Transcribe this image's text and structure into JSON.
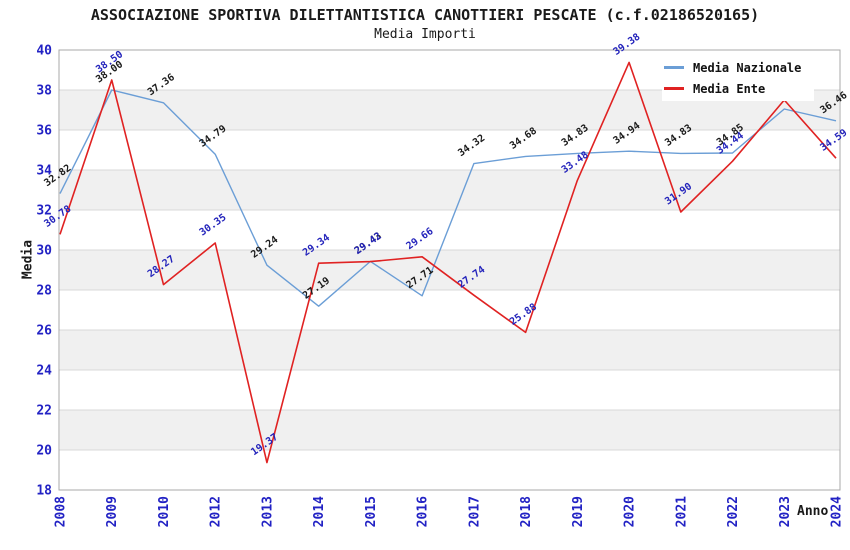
{
  "chart_data": {
    "type": "line",
    "title": "ASSOCIAZIONE SPORTIVA DILETTANTISTICA CANOTTIERI PESCATE (c.f.02186520165)",
    "subtitle": "Media Importi",
    "xlabel": "Anno",
    "ylabel": "Media",
    "ylim": [
      18,
      40
    ],
    "ytick_step": 2,
    "grid": "alternating-horizontal-bands",
    "legend_position": "top-right",
    "categories": [
      "2008",
      "2009",
      "2010",
      "2012",
      "2013",
      "2014",
      "2015",
      "2016",
      "2017",
      "2018",
      "2019",
      "2020",
      "2021",
      "2022",
      "2023",
      "2024"
    ],
    "series": [
      {
        "name": "Media Nazionale",
        "color": "#6b9ed6",
        "label_color": "#1a1a1a",
        "values": [
          32.82,
          38.0,
          37.36,
          34.79,
          29.24,
          27.19,
          29.43,
          27.71,
          34.32,
          34.68,
          34.83,
          34.94,
          34.83,
          34.85,
          37.05,
          36.46
        ],
        "labels": [
          "32.82",
          "38.00",
          "37.36",
          "34.79",
          "29.24",
          "27.19",
          "29.43",
          "27.71",
          "34.32",
          "34.68",
          "34.83",
          "34.94",
          "34.83",
          "34.85",
          "",
          "36.46"
        ]
      },
      {
        "name": "Media Ente",
        "color": "#e02222",
        "label_color": "#2323bb",
        "values": [
          30.78,
          38.5,
          28.27,
          30.35,
          19.37,
          29.34,
          29.42,
          29.66,
          27.74,
          25.88,
          33.48,
          39.38,
          31.9,
          34.44,
          37.5,
          34.59
        ],
        "labels": [
          "30.78",
          "38.50",
          "28.27",
          "30.35",
          "19.37",
          "29.34",
          "29.42",
          "29.66",
          "27.74",
          "25.88",
          "33.48",
          "39.38",
          "31.90",
          "34.44",
          "",
          "34.59"
        ]
      }
    ],
    "colors": {
      "tick_label": "#2222c4",
      "band_fill": "#f0f0f0",
      "gridline": "#d8d8d8",
      "plot_border": "#a9a9a9"
    }
  }
}
